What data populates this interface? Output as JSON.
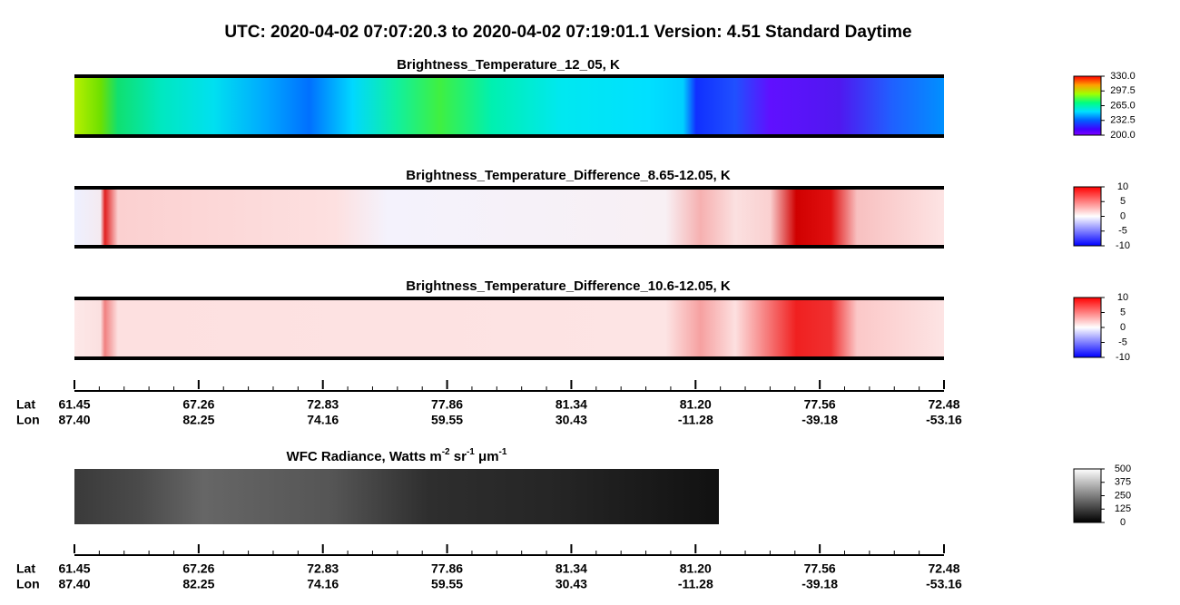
{
  "title": "UTC:  2020-04-02   07:07:20.3  to  2020-04-02   07:19:01.1    Version: 4.51  Standard Daytime",
  "panels": [
    {
      "title": [
        {
          "text": "Brightness_Temperature_12_05, K"
        }
      ],
      "colormap": "rainbow",
      "clim": [
        200,
        330
      ],
      "cticks": [
        {
          "value": 330,
          "label": "330.0"
        },
        297.5,
        {
          "value": 265,
          "label": "265.0"
        },
        232.5,
        {
          "value": 200,
          "label": "200.0"
        }
      ]
    },
    {
      "title": [
        {
          "text": "Brightness_Temperature_Difference_8.65-12.05, K"
        }
      ],
      "colormap": "diverging",
      "clim": [
        -10,
        10
      ],
      "cticks": [
        10,
        5,
        0,
        -5,
        -10
      ]
    },
    {
      "title": [
        {
          "text": "Brightness_Temperature_Difference_10.6-12.05, K"
        }
      ],
      "colormap": "diverging",
      "clim": [
        -10,
        10
      ],
      "cticks": [
        10,
        5,
        0,
        -5,
        -10
      ]
    },
    {
      "title": [
        {
          "text": "WFC Radiance, Watts m"
        },
        {
          "text": "-2",
          "sup": true
        },
        {
          "text": " sr"
        },
        {
          "text": "-1",
          "sup": true
        },
        {
          "text": " μm"
        },
        {
          "text": "-1",
          "sup": true
        }
      ],
      "colormap": "gray",
      "clim": [
        0,
        500
      ],
      "cticks": [
        500,
        375,
        250,
        125,
        0
      ]
    }
  ],
  "track": {
    "lat_label": "Lat",
    "lon_label": "Lon",
    "lat": [
      "61.45",
      "67.26",
      "72.83",
      "77.86",
      "81.34",
      "81.20",
      "77.56",
      "72.48"
    ],
    "lon": [
      "87.40",
      "82.25",
      "74.16",
      "59.55",
      "30.43",
      "-11.28",
      "-39.18",
      "-53.16"
    ]
  }
}
